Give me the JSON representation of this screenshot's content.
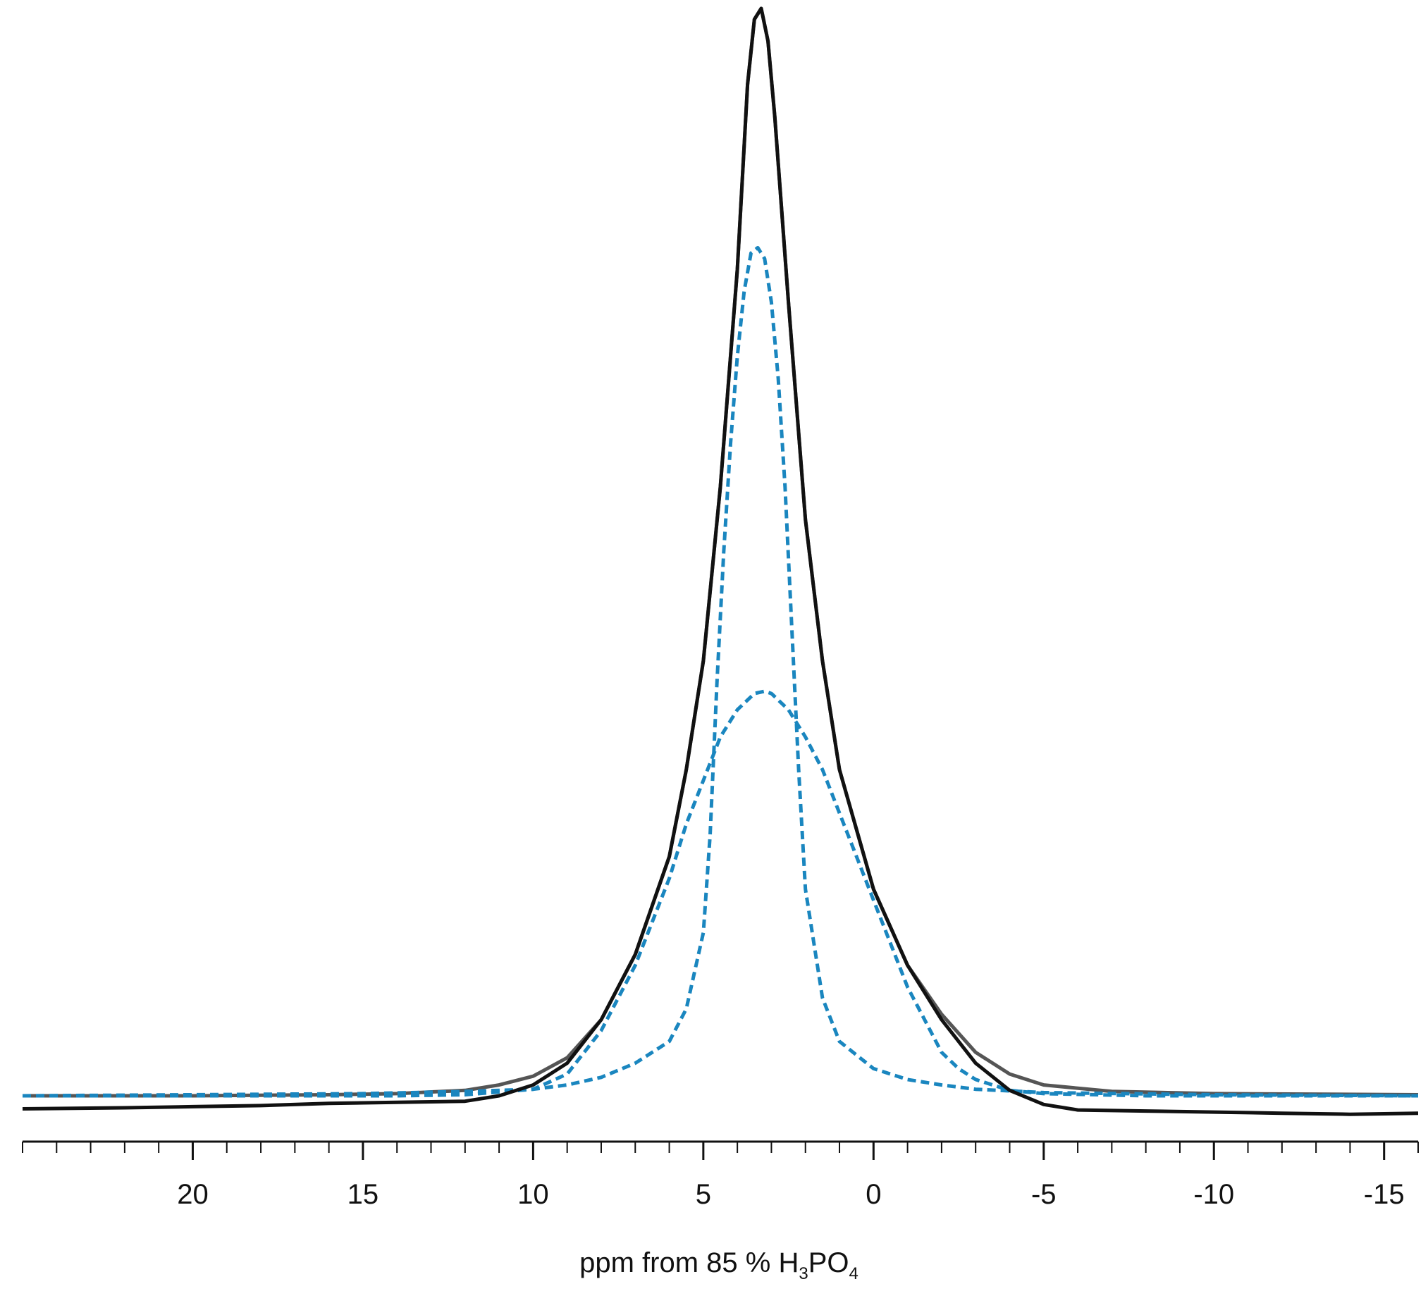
{
  "chart_data": {
    "type": "line",
    "title": "",
    "xlabel": {
      "prefix": "ppm from 85 % H",
      "sub1": "3",
      "mid": "PO",
      "sub2": "4"
    },
    "ylabel": "",
    "x_reversed": true,
    "xlim": [
      25,
      -16
    ],
    "major_ticks": [
      20,
      15,
      10,
      5,
      0,
      -5,
      -10,
      -15
    ],
    "tick_labels": [
      "20",
      "15",
      "10",
      "5",
      "0",
      "-5",
      "-10",
      "-15"
    ],
    "minor_tick_step": 1,
    "grid": false,
    "legend": "none",
    "colors": {
      "experimental": "#111111",
      "fit": "#555555",
      "component": "#1a86bf"
    },
    "series": [
      {
        "style": "solid",
        "points": [
          [
            25,
            -0.012
          ],
          [
            22,
            -0.011
          ],
          [
            20,
            -0.01
          ],
          [
            18,
            -0.009
          ],
          [
            16,
            -0.007
          ],
          [
            14,
            -0.006
          ],
          [
            12,
            -0.005
          ],
          [
            11,
            0.0
          ],
          [
            10,
            0.01
          ],
          [
            9,
            0.03
          ],
          [
            8,
            0.07
          ],
          [
            7,
            0.13
          ],
          [
            6,
            0.22
          ],
          [
            5.5,
            0.3
          ],
          [
            5,
            0.4
          ],
          [
            4.5,
            0.56
          ],
          [
            4,
            0.76
          ],
          [
            3.7,
            0.93
          ],
          [
            3.5,
            0.99
          ],
          [
            3.3,
            1.0
          ],
          [
            3.1,
            0.97
          ],
          [
            2.9,
            0.9
          ],
          [
            2.5,
            0.73
          ],
          [
            2.0,
            0.53
          ],
          [
            1.5,
            0.4
          ],
          [
            1,
            0.3
          ],
          [
            0,
            0.19
          ],
          [
            -1,
            0.12
          ],
          [
            -2,
            0.07
          ],
          [
            -3,
            0.03
          ],
          [
            -4,
            0.005
          ],
          [
            -5,
            -0.008
          ],
          [
            -6,
            -0.013
          ],
          [
            -8,
            -0.014
          ],
          [
            -10,
            -0.015
          ],
          [
            -12,
            -0.016
          ],
          [
            -14,
            -0.017
          ],
          [
            -16,
            -0.016
          ]
        ]
      },
      {
        "style": "solid-gray",
        "points": [
          [
            25,
            0.0
          ],
          [
            20,
            0.0
          ],
          [
            16,
            0.001
          ],
          [
            14,
            0.002
          ],
          [
            12,
            0.005
          ],
          [
            11,
            0.01
          ],
          [
            10,
            0.018
          ],
          [
            9,
            0.035
          ],
          [
            8,
            0.07
          ],
          [
            7,
            0.13
          ],
          [
            6,
            0.22
          ],
          [
            5.5,
            0.3
          ],
          [
            5,
            0.4
          ],
          [
            4.5,
            0.56
          ],
          [
            4,
            0.76
          ],
          [
            3.7,
            0.93
          ],
          [
            3.5,
            0.99
          ],
          [
            3.3,
            1.0
          ],
          [
            3.1,
            0.97
          ],
          [
            2.9,
            0.9
          ],
          [
            2.5,
            0.73
          ],
          [
            2.0,
            0.53
          ],
          [
            1.5,
            0.4
          ],
          [
            1,
            0.3
          ],
          [
            0,
            0.19
          ],
          [
            -1,
            0.12
          ],
          [
            -2,
            0.075
          ],
          [
            -3,
            0.04
          ],
          [
            -4,
            0.02
          ],
          [
            -5,
            0.01
          ],
          [
            -7,
            0.004
          ],
          [
            -10,
            0.002
          ],
          [
            -16,
            0.001
          ]
        ]
      },
      {
        "style": "dashed",
        "points": [
          [
            25,
            0.0
          ],
          [
            15,
            0.002
          ],
          [
            12,
            0.004
          ],
          [
            10,
            0.006
          ],
          [
            9,
            0.01
          ],
          [
            8,
            0.017
          ],
          [
            7,
            0.03
          ],
          [
            6,
            0.05
          ],
          [
            5.5,
            0.08
          ],
          [
            5,
            0.15
          ],
          [
            4.8,
            0.24
          ],
          [
            4.6,
            0.38
          ],
          [
            4.4,
            0.5
          ],
          [
            4.2,
            0.6
          ],
          [
            4.0,
            0.68
          ],
          [
            3.8,
            0.74
          ],
          [
            3.6,
            0.775
          ],
          [
            3.4,
            0.78
          ],
          [
            3.2,
            0.77
          ],
          [
            3.0,
            0.73
          ],
          [
            2.8,
            0.66
          ],
          [
            2.6,
            0.56
          ],
          [
            2.4,
            0.43
          ],
          [
            2.2,
            0.3
          ],
          [
            2.0,
            0.19
          ],
          [
            1.5,
            0.09
          ],
          [
            1,
            0.05
          ],
          [
            0,
            0.025
          ],
          [
            -1,
            0.015
          ],
          [
            -2,
            0.01
          ],
          [
            -3,
            0.006
          ],
          [
            -5,
            0.003
          ],
          [
            -10,
            0.001
          ],
          [
            -16,
            0.0
          ]
        ]
      },
      {
        "style": "dashed",
        "points": [
          [
            25,
            0.0
          ],
          [
            14,
            0.0
          ],
          [
            12,
            0.001
          ],
          [
            10,
            0.006
          ],
          [
            9,
            0.02
          ],
          [
            8,
            0.06
          ],
          [
            7,
            0.12
          ],
          [
            6,
            0.2
          ],
          [
            5.5,
            0.25
          ],
          [
            5,
            0.29
          ],
          [
            4.5,
            0.33
          ],
          [
            4,
            0.355
          ],
          [
            3.5,
            0.37
          ],
          [
            3.2,
            0.372
          ],
          [
            3,
            0.37
          ],
          [
            2.5,
            0.355
          ],
          [
            2,
            0.33
          ],
          [
            1.5,
            0.3
          ],
          [
            1,
            0.26
          ],
          [
            0.5,
            0.22
          ],
          [
            0,
            0.18
          ],
          [
            -0.5,
            0.14
          ],
          [
            -1,
            0.1
          ],
          [
            -1.5,
            0.07
          ],
          [
            -2,
            0.04
          ],
          [
            -2.5,
            0.025
          ],
          [
            -3,
            0.015
          ],
          [
            -4,
            0.005
          ],
          [
            -5,
            0.002
          ],
          [
            -8,
            0.0
          ],
          [
            -16,
            0.0
          ]
        ]
      }
    ]
  }
}
